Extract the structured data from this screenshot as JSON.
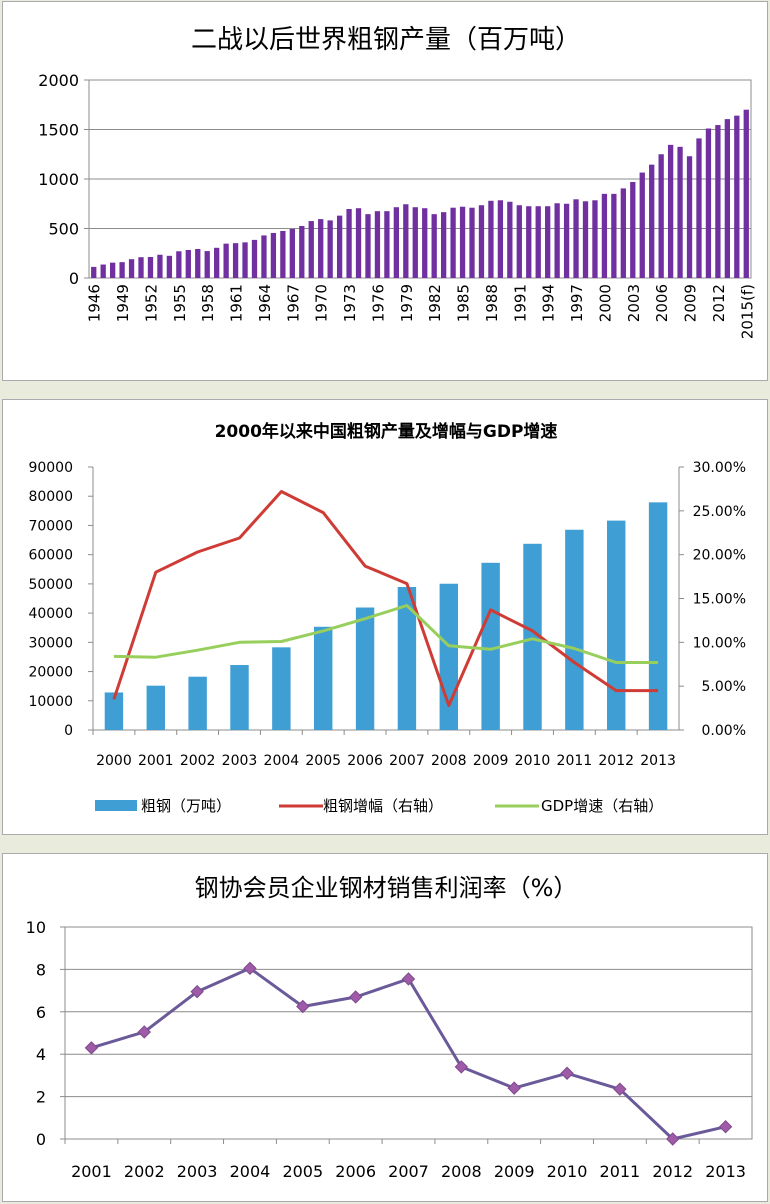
{
  "chart_data": [
    {
      "type": "bar",
      "title": "二战以后世界粗钢产量（百万吨）",
      "ylim": [
        0,
        2000
      ],
      "yticks": [
        0,
        500,
        1000,
        1500,
        2000
      ],
      "grid": true,
      "categories": [
        "1946",
        "1947",
        "1948",
        "1949",
        "1950",
        "1951",
        "1952",
        "1953",
        "1954",
        "1955",
        "1956",
        "1957",
        "1958",
        "1959",
        "1960",
        "1961",
        "1962",
        "1963",
        "1964",
        "1965",
        "1966",
        "1967",
        "1968",
        "1969",
        "1970",
        "1971",
        "1972",
        "1973",
        "1974",
        "1975",
        "1976",
        "1977",
        "1978",
        "1979",
        "1980",
        "1981",
        "1982",
        "1983",
        "1984",
        "1985",
        "1986",
        "1987",
        "1988",
        "1989",
        "1990",
        "1991",
        "1992",
        "1993",
        "1994",
        "1995",
        "1996",
        "1997",
        "1998",
        "1999",
        "2000",
        "2001",
        "2002",
        "2003",
        "2004",
        "2005",
        "2006",
        "2007",
        "2008",
        "2009",
        "2010",
        "2011",
        "2012",
        "2013",
        "2014",
        "2015(f)"
      ],
      "tick_labels": [
        "1946",
        "1949",
        "1952",
        "1955",
        "1958",
        "1961",
        "1964",
        "1967",
        "1970",
        "1973",
        "1976",
        "1979",
        "1982",
        "1985",
        "1988",
        "1991",
        "1994",
        "1997",
        "2000",
        "2003",
        "2006",
        "2009",
        "2012",
        "2015(f)"
      ],
      "values": [
        112,
        136,
        155,
        160,
        190,
        210,
        212,
        235,
        224,
        270,
        283,
        293,
        272,
        305,
        347,
        352,
        360,
        385,
        430,
        455,
        475,
        495,
        525,
        575,
        595,
        582,
        630,
        697,
        705,
        645,
        675,
        675,
        715,
        745,
        715,
        705,
        645,
        665,
        710,
        720,
        710,
        735,
        780,
        785,
        770,
        735,
        725,
        725,
        725,
        755,
        750,
        795,
        775,
        785,
        850,
        850,
        905,
        970,
        1065,
        1145,
        1250,
        1345,
        1325,
        1230,
        1410,
        1510,
        1545,
        1605,
        1640,
        1700
      ],
      "color": "#7030a0"
    },
    {
      "type": "bar+line",
      "title": "2000年以来中国粗钢产量及增幅与GDP增速",
      "categories": [
        "2000",
        "2001",
        "2002",
        "2003",
        "2004",
        "2005",
        "2006",
        "2007",
        "2008",
        "2009",
        "2010",
        "2011",
        "2012",
        "2013"
      ],
      "ylim_left": [
        0,
        90000
      ],
      "yticks_left": [
        "0",
        "10000",
        "20000",
        "30000",
        "40000",
        "50000",
        "60000",
        "70000",
        "80000",
        "90000"
      ],
      "ylim_right": [
        0,
        0.3
      ],
      "yticks_right": [
        "0.00%",
        "5.00%",
        "10.00%",
        "15.00%",
        "20.00%",
        "25.00%",
        "30.00%"
      ],
      "legend_position": "bottom",
      "series": [
        {
          "name": "粗钢（万吨）",
          "kind": "bar",
          "axis": "left",
          "color": "#3f9ed4",
          "values": [
            12850,
            15163,
            18237,
            22234,
            28291,
            35324,
            41915,
            48929,
            50049,
            57218,
            63723,
            68528,
            71654,
            77904
          ]
        },
        {
          "name": "粗钢增幅（右轴）",
          "kind": "line",
          "axis": "right",
          "color": "#cf3b35",
          "values": [
            0.035,
            0.18,
            0.203,
            0.219,
            0.272,
            0.248,
            0.187,
            0.167,
            0.028,
            0.137,
            0.113,
            0.077,
            0.045,
            0.045
          ]
        },
        {
          "name": "GDP增速（右轴）",
          "kind": "line",
          "axis": "right",
          "color": "#98cf5c",
          "values": [
            0.084,
            0.083,
            0.091,
            0.1,
            0.101,
            0.113,
            0.127,
            0.142,
            0.096,
            0.092,
            0.104,
            0.093,
            0.077,
            0.077
          ]
        }
      ]
    },
    {
      "type": "line",
      "title": "钢协会员企业钢材销售利润率（%）",
      "categories": [
        "2001",
        "2002",
        "2003",
        "2004",
        "2005",
        "2006",
        "2007",
        "2008",
        "2009",
        "2010",
        "2011",
        "2012",
        "2013"
      ],
      "ylim": [
        0,
        10
      ],
      "yticks": [
        "0",
        "2",
        "4",
        "6",
        "8",
        "10"
      ],
      "grid": true,
      "series": [
        {
          "color": "#6a5a99",
          "marker_color": "#9f5ba8",
          "values": [
            4.3,
            5.05,
            6.95,
            8.05,
            6.25,
            6.7,
            7.55,
            3.4,
            2.4,
            3.1,
            2.35,
            0.0,
            0.58
          ]
        }
      ]
    }
  ]
}
